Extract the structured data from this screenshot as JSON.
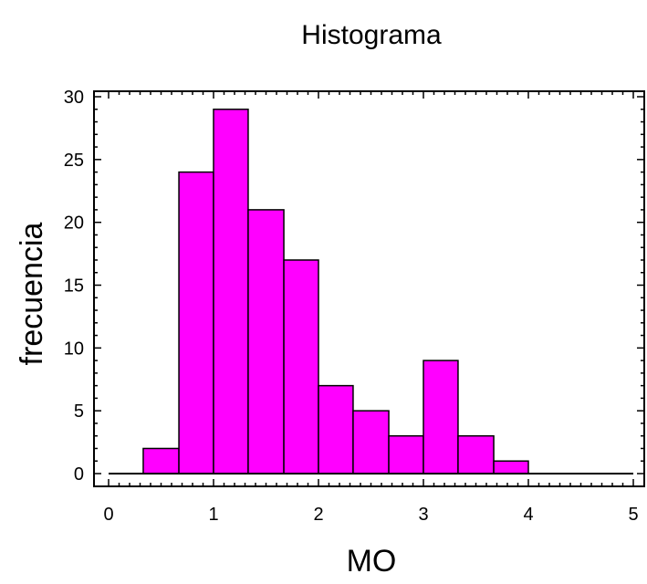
{
  "chart_data": {
    "type": "bar",
    "title": "Histograma",
    "xlabel": "MO",
    "ylabel": "frecuencia",
    "xlim": [
      0,
      5
    ],
    "ylim": [
      0,
      30
    ],
    "x_ticks": [
      0,
      1,
      2,
      3,
      4,
      5
    ],
    "y_ticks": [
      0,
      5,
      10,
      15,
      20,
      25,
      30
    ],
    "bin_edges": [
      0.33,
      0.67,
      1.0,
      1.33,
      1.67,
      2.0,
      2.33,
      2.67,
      3.0,
      3.33,
      3.67,
      4.0
    ],
    "values": [
      2,
      24,
      29,
      21,
      17,
      7,
      5,
      3,
      9,
      3,
      1
    ],
    "grid": false,
    "colors": {
      "bar_fill": "#ff00ff",
      "bar_stroke": "#000000",
      "axis": "#000000"
    }
  }
}
